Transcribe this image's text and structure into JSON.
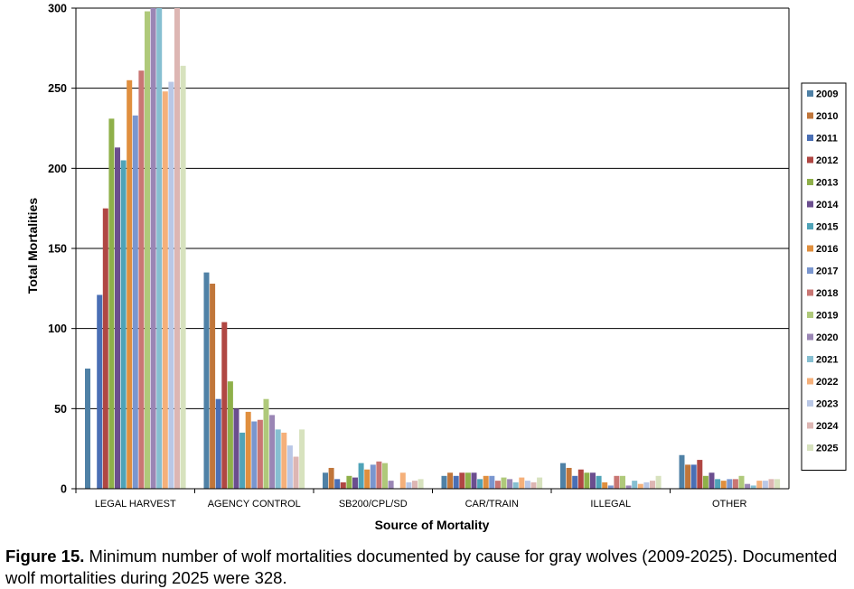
{
  "chart_data": {
    "type": "bar",
    "xlabel": "Source of Mortality",
    "ylabel": "Total Mortalities",
    "ylim": [
      0,
      300
    ],
    "yticks": [
      0,
      50,
      100,
      150,
      200,
      250,
      300
    ],
    "grid": true,
    "legend_position": "right",
    "categories": [
      "LEGAL HARVEST",
      "AGENCY CONTROL",
      "SB200/CPL/SD",
      "CAR/TRAIN",
      "ILLEGAL",
      "OTHER"
    ],
    "series": [
      {
        "name": "2009",
        "color": "#4F81A6",
        "values": [
          75,
          135,
          10,
          8,
          16,
          21
        ]
      },
      {
        "name": "2010",
        "color": "#C0763A",
        "values": [
          0,
          128,
          13,
          10,
          13,
          15
        ]
      },
      {
        "name": "2011",
        "color": "#4A6FB5",
        "values": [
          121,
          56,
          6,
          8,
          8,
          15
        ]
      },
      {
        "name": "2012",
        "color": "#B04743",
        "values": [
          175,
          104,
          4,
          10,
          12,
          18
        ]
      },
      {
        "name": "2013",
        "color": "#8FB04A",
        "values": [
          231,
          67,
          8,
          10,
          10,
          8
        ]
      },
      {
        "name": "2014",
        "color": "#6B4E8F",
        "values": [
          213,
          50,
          7,
          10,
          10,
          10
        ]
      },
      {
        "name": "2015",
        "color": "#4FA3B8",
        "values": [
          205,
          35,
          16,
          6,
          8,
          6
        ]
      },
      {
        "name": "2016",
        "color": "#E08F3E",
        "values": [
          255,
          48,
          12,
          8,
          4,
          5
        ]
      },
      {
        "name": "2017",
        "color": "#7A96CF",
        "values": [
          233,
          42,
          15,
          8,
          2,
          6
        ]
      },
      {
        "name": "2018",
        "color": "#C97673",
        "values": [
          261,
          43,
          17,
          5,
          8,
          6
        ]
      },
      {
        "name": "2019",
        "color": "#AFC97A",
        "values": [
          298,
          56,
          16,
          7,
          8,
          8
        ]
      },
      {
        "name": "2020",
        "color": "#9A86B5",
        "values": [
          301,
          46,
          5,
          6,
          2,
          3
        ]
      },
      {
        "name": "2021",
        "color": "#86BFD1",
        "values": [
          301,
          37,
          0,
          4,
          5,
          2
        ]
      },
      {
        "name": "2022",
        "color": "#F5B07A",
        "values": [
          248,
          35,
          10,
          7,
          3,
          5
        ]
      },
      {
        "name": "2023",
        "color": "#B9C7E6",
        "values": [
          254,
          27,
          4,
          5,
          4,
          5
        ]
      },
      {
        "name": "2024",
        "color": "#DDB6B3",
        "values": [
          301,
          20,
          5,
          4,
          5,
          6
        ]
      },
      {
        "name": "2025",
        "color": "#D7E2BE",
        "values": [
          264,
          37,
          6,
          7,
          8,
          6
        ]
      }
    ]
  },
  "caption": {
    "label": "Figure 15.",
    "text": " Minimum number of wolf mortalities documented by cause for gray wolves (2009-2025). Documented wolf mortalities during 2025 were 328."
  }
}
